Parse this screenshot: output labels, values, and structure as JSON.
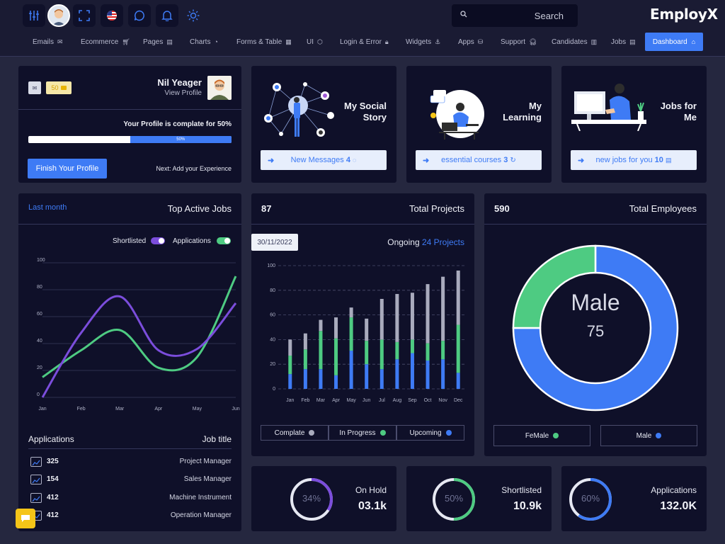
{
  "app": {
    "logo": "EmployX"
  },
  "search": {
    "placeholder": "Search"
  },
  "nav": {
    "items": [
      {
        "label": "Emails"
      },
      {
        "label": "Ecommerce"
      },
      {
        "label": "Pages"
      },
      {
        "label": "Charts"
      },
      {
        "label": "Forms & Table"
      },
      {
        "label": "UI"
      },
      {
        "label": "Login & Error"
      },
      {
        "label": "Widgets"
      },
      {
        "label": "Apps"
      },
      {
        "label": "Support"
      },
      {
        "label": "Candidates"
      },
      {
        "label": "Jobs"
      }
    ],
    "active": "Dashboard"
  },
  "profile": {
    "badge": "50",
    "name": "Nil Yeager",
    "view_link": "View Profile",
    "progress_text": "Your Profile is complate for 50%",
    "progress_value": 0.5,
    "progress_label": "50%",
    "finish_button": "Finish Your Profile",
    "next_text": "Next: Add your Experience"
  },
  "social": {
    "title_line1": "My Social",
    "title_line2": "Story",
    "button": "New Messages",
    "count": "4"
  },
  "learning": {
    "title_line1": "My",
    "title_line2": "Learning",
    "button": "essential courses",
    "count": "3"
  },
  "jobs_card": {
    "title_line1": "Jobs for",
    "title_line2": "Me",
    "button": "new jobs for you",
    "count": "10"
  },
  "active_jobs": {
    "period": "Last month",
    "title": "Top Active Jobs",
    "toggle1": "Shortlisted",
    "toggle2": "Applications",
    "list_header_left": "Applications",
    "list_header_right": "Job title",
    "rows": [
      {
        "count": "325",
        "title": "Project Manager"
      },
      {
        "count": "154",
        "title": "Sales Manager"
      },
      {
        "count": "412",
        "title": "Machine Instrument"
      },
      {
        "count": "412",
        "title": "Operation Manager"
      }
    ]
  },
  "projects": {
    "count": "87",
    "title": "Total Projects",
    "date": "30/11/2022",
    "ongoing_label": "Ongoing",
    "ongoing_value": "24 Projects",
    "legend": [
      "Complate",
      "In Progress",
      "Upcoming"
    ]
  },
  "employees": {
    "count": "590",
    "title": "Total Employees",
    "center_label": "Male",
    "center_value": "75",
    "legend": [
      "FeMale",
      "Male"
    ]
  },
  "stats": [
    {
      "label": "On Hold",
      "value": "03.1k",
      "percent": "34%",
      "fraction": 0.34,
      "color": "#7b4ddc"
    },
    {
      "label": "Shortlisted",
      "value": "10.9k",
      "percent": "50%",
      "fraction": 0.5,
      "color": "#4ecb82"
    },
    {
      "label": "Applications",
      "value": "132.0K",
      "percent": "60%",
      "fraction": 0.6,
      "color": "#3e7bf5"
    }
  ],
  "colors": {
    "accent": "#3e7bf5",
    "green": "#4ecb82",
    "purple": "#7b4ddc",
    "grey": "#a9abbd",
    "card": "#0f1029"
  },
  "chart_data": [
    {
      "type": "line",
      "x": [
        "Jan",
        "Feb",
        "Mar",
        "Apr",
        "May",
        "Jun"
      ],
      "ylim": [
        0,
        100
      ],
      "yticks": [
        0,
        20,
        40,
        60,
        80,
        100
      ],
      "grid": true,
      "series": [
        {
          "name": "Shortlisted",
          "color": "#7b4ddc",
          "values": [
            0,
            48,
            75,
            35,
            36,
            70
          ]
        },
        {
          "name": "Applications",
          "color": "#4ecb82",
          "values": [
            15,
            35,
            50,
            22,
            30,
            90
          ]
        }
      ]
    },
    {
      "type": "bar",
      "stacked": true,
      "categories": [
        "Jan",
        "Feb",
        "Mar",
        "Apr",
        "May",
        "Jun",
        "Jul",
        "Aug",
        "Sep",
        "Oct",
        "Nov",
        "Dec"
      ],
      "ylim": [
        0,
        100
      ],
      "yticks": [
        0,
        20,
        40,
        60,
        80,
        100
      ],
      "series": [
        {
          "name": "Complate",
          "color": "#3e7bf5",
          "values": [
            12,
            16,
            16,
            11,
            31,
            20,
            16,
            24,
            29,
            23,
            24,
            13
          ]
        },
        {
          "name": "In Progress",
          "color": "#4ecb82",
          "values": [
            15,
            16,
            31,
            30,
            27,
            19,
            24,
            14,
            11,
            14,
            15,
            39
          ]
        },
        {
          "name": "Upcoming",
          "color": "#a9abbd",
          "values": [
            13,
            13,
            9,
            17,
            8,
            18,
            33,
            39,
            38,
            48,
            52,
            44
          ]
        }
      ]
    },
    {
      "type": "pie",
      "donut": true,
      "labels": [
        "Male",
        "FeMale"
      ],
      "values": [
        75,
        25
      ],
      "colors": [
        "#3e7bf5",
        "#4ecb82"
      ]
    }
  ]
}
